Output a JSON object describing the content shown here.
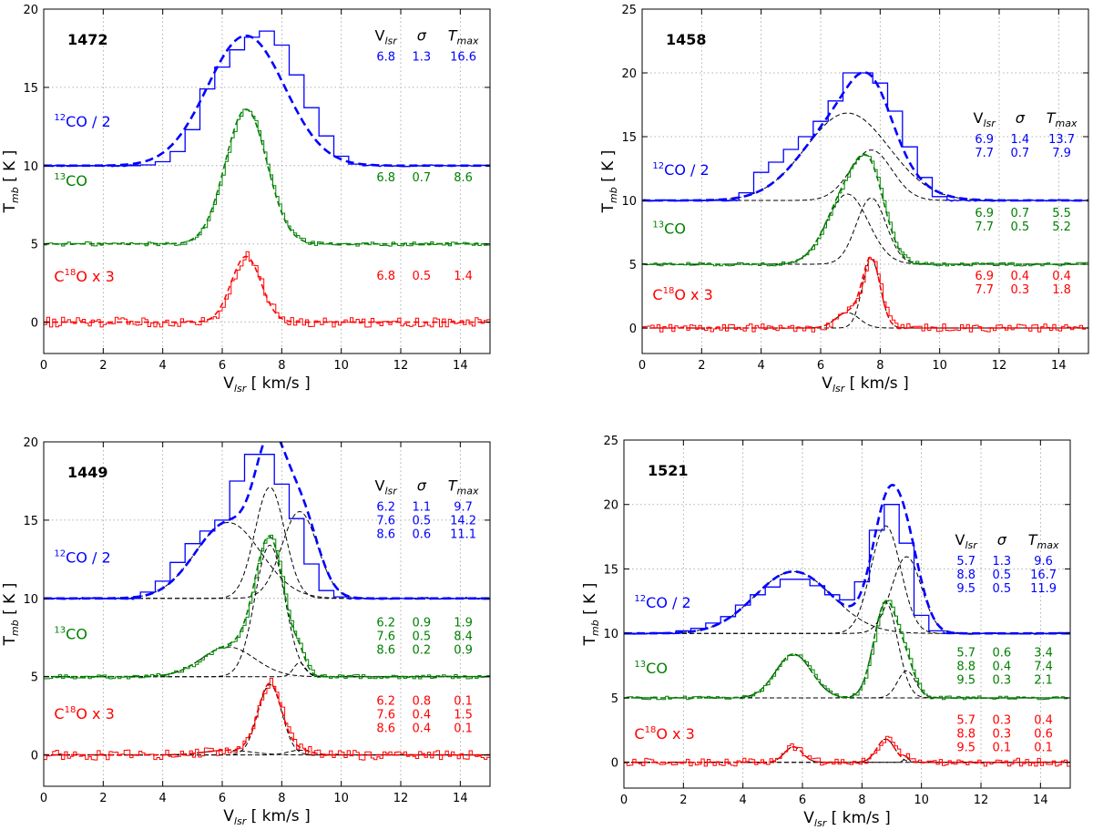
{
  "figure": {
    "xlabel": "V",
    "xlabel_sub": "lsr",
    "xlabel_unit": "  [ km/s ]",
    "ylabel": "T",
    "ylabel_sub": "mb",
    "ylabel_unit": "  [ K ]",
    "table_headers": [
      "V",
      "lsr",
      "σ",
      "T",
      "max"
    ],
    "line_labels": [
      {
        "sup": "12",
        "text": "CO / 2"
      },
      {
        "sup": "13",
        "text": "CO"
      },
      {
        "pre": "C",
        "sup": "18",
        "text": "O x 3"
      }
    ],
    "colors": {
      "co12": "#0000ff",
      "co13": "#008000",
      "c18o": "#ff0000",
      "gauss": "#000000"
    }
  },
  "chart_data": [
    {
      "type": "line",
      "title": "1472",
      "xlim": [
        0,
        15
      ],
      "ylim": [
        -2,
        20
      ],
      "xticks": [
        0,
        2,
        4,
        6,
        8,
        10,
        12,
        14
      ],
      "yticks": [
        0,
        5,
        10,
        15,
        20
      ],
      "label_y": [
        12.5,
        8.7,
        2.6
      ],
      "series": [
        {
          "name": "12CO / 2",
          "offset": 10,
          "hist_centers": [
            3.5,
            4,
            4.5,
            5,
            5.5,
            6,
            6.5,
            7,
            7.5,
            8,
            8.5,
            9,
            9.5,
            10,
            10.5
          ],
          "hist_values": [
            0.05,
            0.25,
            0.9,
            2.3,
            4.9,
            6.3,
            7.4,
            8.2,
            8.6,
            7.7,
            5.8,
            3.7,
            1.9,
            0.6,
            0.1
          ],
          "components": [
            {
              "v": 6.8,
              "sigma": 1.3,
              "tmax": 16.6
            }
          ],
          "rows": [
            [
              "6.8",
              "1.3",
              "16.6"
            ]
          ],
          "table_y": 16.7
        },
        {
          "name": "13CO",
          "offset": 5,
          "components": [
            {
              "v": 6.8,
              "sigma": 0.7,
              "tmax": 8.6
            }
          ],
          "rows": [
            [
              "6.8",
              "0.7",
              "8.6"
            ]
          ],
          "table_y": 9.0
        },
        {
          "name": "C18O x 3",
          "offset": 0,
          "components": [
            {
              "v": 6.8,
              "sigma": 0.5,
              "tmax": 1.4
            }
          ],
          "rows": [
            [
              "6.8",
              "0.5",
              "1.4"
            ]
          ],
          "table_y": 2.7
        }
      ]
    },
    {
      "type": "line",
      "title": "1458",
      "xlim": [
        0,
        15
      ],
      "ylim": [
        -2,
        25
      ],
      "xticks": [
        0,
        2,
        4,
        6,
        8,
        10,
        12,
        14
      ],
      "yticks": [
        0,
        5,
        10,
        15,
        20,
        25
      ],
      "label_y": [
        12.0,
        7.4,
        2.2
      ],
      "series": [
        {
          "name": "12CO / 2",
          "offset": 10,
          "hist_centers": [
            3.5,
            4,
            4.5,
            5,
            5.5,
            6,
            6.5,
            7,
            7.5,
            8,
            8.5,
            9,
            9.5,
            10
          ],
          "hist_values": [
            0.6,
            2.2,
            3.0,
            4.0,
            5.0,
            6.2,
            7.8,
            10.0,
            10.0,
            9.2,
            7.0,
            4.2,
            1.8,
            0.3
          ],
          "components": [
            {
              "v": 6.9,
              "sigma": 1.4,
              "tmax": 13.7
            },
            {
              "v": 7.7,
              "sigma": 0.7,
              "tmax": 7.9
            }
          ],
          "rows": [
            [
              "6.9",
              "1.4",
              "13.7"
            ],
            [
              "7.7",
              "0.7",
              "7.9"
            ]
          ],
          "table_y": 14.5
        },
        {
          "name": "13CO",
          "offset": 5,
          "components": [
            {
              "v": 6.9,
              "sigma": 0.7,
              "tmax": 5.5
            },
            {
              "v": 7.7,
              "sigma": 0.5,
              "tmax": 5.2
            }
          ],
          "rows": [
            [
              "6.9",
              "0.7",
              "5.5"
            ],
            [
              "7.7",
              "0.5",
              "5.2"
            ]
          ],
          "table_y": 8.7
        },
        {
          "name": "C18O x 3",
          "offset": 0,
          "components": [
            {
              "v": 6.9,
              "sigma": 0.4,
              "tmax": 0.4
            },
            {
              "v": 7.7,
              "sigma": 0.3,
              "tmax": 1.8
            }
          ],
          "rows": [
            [
              "6.9",
              "0.4",
              "0.4"
            ],
            [
              "7.7",
              "0.3",
              "1.8"
            ]
          ],
          "table_y": 3.8
        }
      ]
    },
    {
      "type": "line",
      "title": "1449",
      "xlim": [
        0,
        15
      ],
      "ylim": [
        -2,
        20
      ],
      "xticks": [
        0,
        2,
        4,
        6,
        8,
        10,
        12,
        14
      ],
      "yticks": [
        0,
        5,
        10,
        15,
        20
      ],
      "label_y": [
        12.3,
        7.4,
        2.3
      ],
      "series": [
        {
          "name": "12CO / 2",
          "offset": 10,
          "hist_centers": [
            3.5,
            4,
            4.5,
            5,
            5.5,
            6,
            6.5,
            7,
            7.5,
            8,
            8.5,
            9,
            9.5,
            10
          ],
          "hist_values": [
            0.4,
            1.1,
            2.3,
            3.5,
            4.3,
            5.0,
            7.5,
            9.2,
            9.2,
            7.3,
            5.1,
            2.2,
            0.5,
            0.1
          ],
          "components": [
            {
              "v": 6.2,
              "sigma": 1.1,
              "tmax": 9.7
            },
            {
              "v": 7.6,
              "sigma": 0.5,
              "tmax": 14.2
            },
            {
              "v": 8.6,
              "sigma": 0.6,
              "tmax": 11.1
            }
          ],
          "rows": [
            [
              "6.2",
              "1.1",
              "9.7"
            ],
            [
              "7.6",
              "0.5",
              "14.2"
            ],
            [
              "8.6",
              "0.6",
              "11.1"
            ]
          ],
          "table_y": 15.6
        },
        {
          "name": "13CO",
          "offset": 5,
          "components": [
            {
              "v": 6.2,
              "sigma": 0.9,
              "tmax": 1.9
            },
            {
              "v": 7.6,
              "sigma": 0.5,
              "tmax": 8.4
            },
            {
              "v": 8.6,
              "sigma": 0.2,
              "tmax": 0.9
            }
          ],
          "rows": [
            [
              "6.2",
              "0.9",
              "1.9"
            ],
            [
              "7.6",
              "0.5",
              "8.4"
            ],
            [
              "8.6",
              "0.2",
              "0.9"
            ]
          ],
          "table_y": 8.2
        },
        {
          "name": "C18O x 3",
          "offset": 0,
          "components": [
            {
              "v": 6.2,
              "sigma": 0.8,
              "tmax": 0.1
            },
            {
              "v": 7.6,
              "sigma": 0.4,
              "tmax": 1.5
            },
            {
              "v": 8.6,
              "sigma": 0.4,
              "tmax": 0.1
            }
          ],
          "rows": [
            [
              "6.2",
              "0.8",
              "0.1"
            ],
            [
              "7.6",
              "0.4",
              "1.5"
            ],
            [
              "8.6",
              "0.4",
              "0.1"
            ]
          ],
          "table_y": 3.2
        }
      ]
    },
    {
      "type": "line",
      "title": "1521",
      "xlim": [
        0,
        15
      ],
      "ylim": [
        -2,
        25
      ],
      "xticks": [
        0,
        2,
        4,
        6,
        8,
        10,
        12,
        14
      ],
      "yticks": [
        0,
        5,
        10,
        15,
        20,
        25
      ],
      "label_y": [
        12.0,
        6.9,
        1.8
      ],
      "series": [
        {
          "name": "12CO / 2",
          "offset": 10,
          "hist_centers": [
            2,
            2.5,
            3,
            3.5,
            4,
            4.5,
            5,
            5.5,
            6,
            6.5,
            7,
            7.5,
            8,
            8.5,
            9,
            9.5,
            10,
            10.5
          ],
          "hist_values": [
            0.2,
            0.4,
            0.8,
            1.3,
            2.2,
            3.0,
            3.6,
            4.2,
            4.2,
            3.7,
            3.0,
            2.6,
            4.0,
            8.0,
            10.0,
            7.0,
            1.4,
            0.2
          ],
          "components": [
            {
              "v": 5.7,
              "sigma": 1.3,
              "tmax": 9.6
            },
            {
              "v": 8.8,
              "sigma": 0.5,
              "tmax": 16.7
            },
            {
              "v": 9.5,
              "sigma": 0.5,
              "tmax": 11.9
            }
          ],
          "rows": [
            [
              "5.7",
              "1.3",
              "9.6"
            ],
            [
              "8.8",
              "0.5",
              "16.7"
            ],
            [
              "9.5",
              "0.5",
              "11.9"
            ]
          ],
          "table_y": 15.3
        },
        {
          "name": "13CO",
          "offset": 5,
          "components": [
            {
              "v": 5.7,
              "sigma": 0.6,
              "tmax": 3.4
            },
            {
              "v": 8.8,
              "sigma": 0.4,
              "tmax": 7.4
            },
            {
              "v": 9.5,
              "sigma": 0.3,
              "tmax": 2.1
            }
          ],
          "rows": [
            [
              "5.7",
              "0.6",
              "3.4"
            ],
            [
              "8.8",
              "0.4",
              "7.4"
            ],
            [
              "9.5",
              "0.3",
              "2.1"
            ]
          ],
          "table_y": 8.2
        },
        {
          "name": "C18O x 3",
          "offset": 0,
          "components": [
            {
              "v": 5.7,
              "sigma": 0.3,
              "tmax": 0.4
            },
            {
              "v": 8.8,
              "sigma": 0.3,
              "tmax": 0.6
            },
            {
              "v": 9.5,
              "sigma": 0.1,
              "tmax": 0.1
            }
          ],
          "rows": [
            [
              "5.7",
              "0.3",
              "0.4"
            ],
            [
              "8.8",
              "0.3",
              "0.6"
            ],
            [
              "9.5",
              "0.1",
              "0.1"
            ]
          ],
          "table_y": 3.0
        }
      ]
    }
  ]
}
